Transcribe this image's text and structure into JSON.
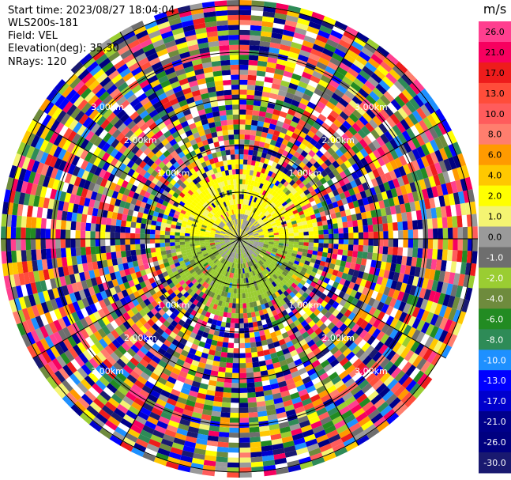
{
  "info": {
    "start_time": "Start time: 2023/08/27 18:04:04",
    "instrument": "WLS200s-181",
    "field": "Field: VEL",
    "elevation": "Elevation(deg): 35.30",
    "nrays": "NRays: 120"
  },
  "colorbar": {
    "unit": "m/s",
    "levels": [
      {
        "label": "26.0",
        "color": "#ff3f8f"
      },
      {
        "label": "21.0",
        "color": "#f7005f"
      },
      {
        "label": "17.0",
        "color": "#ee1c1c"
      },
      {
        "label": "13.0",
        "color": "#ff4d3a"
      },
      {
        "label": "10.0",
        "color": "#ff5c5c"
      },
      {
        "label": "8.0",
        "color": "#ff7e6e"
      },
      {
        "label": "6.0",
        "color": "#ff9a00"
      },
      {
        "label": "4.0",
        "color": "#ffc800"
      },
      {
        "label": "2.0",
        "color": "#ffff00"
      },
      {
        "label": "1.0",
        "color": "#f4f472"
      },
      {
        "label": "0.0",
        "color": "#9a9a9a"
      },
      {
        "label": "-1.0",
        "color": "#6e6e6e"
      },
      {
        "label": "-2.0",
        "color": "#9acd32"
      },
      {
        "label": "-4.0",
        "color": "#6e8b3d"
      },
      {
        "label": "-6.0",
        "color": "#228b22"
      },
      {
        "label": "-8.0",
        "color": "#2e8b57"
      },
      {
        "label": "-10.0",
        "color": "#1e90ff"
      },
      {
        "label": "-13.0",
        "color": "#0000ff"
      },
      {
        "label": "-17.0",
        "color": "#0000cd"
      },
      {
        "label": "-21.0",
        "color": "#00008b"
      },
      {
        "label": "-26.0",
        "color": "#000080"
      },
      {
        "label": "-30.0",
        "color": "#191970"
      }
    ]
  },
  "chart_data": {
    "type": "heatmap",
    "projection": "polar (plan position indicator)",
    "field": "VEL",
    "units": "m/s",
    "n_rays": 120,
    "range_ring_labels": [
      "1.00km",
      "2.00km",
      "3.00km"
    ],
    "value_range": [
      -30.0,
      26.0
    ],
    "near_field_pattern": "positive (yellow) radial velocities to the north half, negative (green) to the south half, grey near zero; outer ranges noisy"
  }
}
